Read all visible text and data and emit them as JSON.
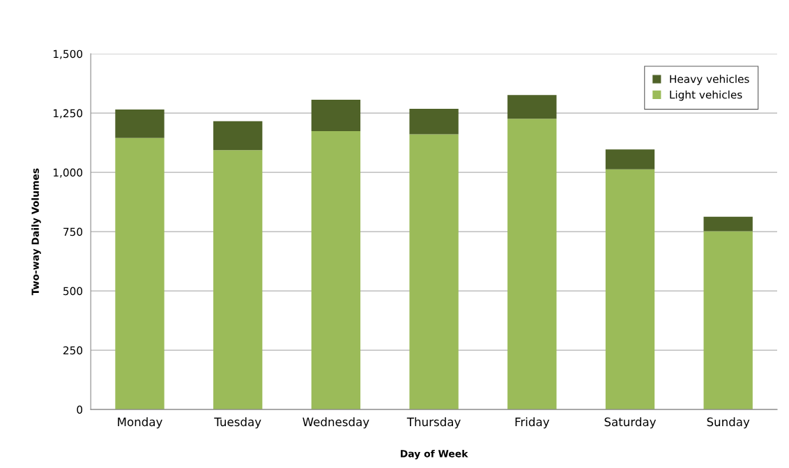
{
  "chart_data": {
    "type": "bar",
    "stacked": true,
    "xlabel": "Day of Week",
    "ylabel": "Two-way Daily Volumes",
    "categories": [
      "Monday",
      "Tuesday",
      "Wednesday",
      "Thursday",
      "Friday",
      "Saturday",
      "Sunday"
    ],
    "series": [
      {
        "name": "Light vehicles",
        "color": "#9bbb59",
        "values": [
          1145,
          1094,
          1174,
          1161,
          1226,
          1013,
          752
        ]
      },
      {
        "name": "Heavy vehicles",
        "color": "#4f6228",
        "values": [
          120,
          122,
          132,
          107,
          100,
          84,
          61
        ]
      }
    ],
    "ylim": [
      0,
      1500
    ],
    "yticks": [
      {
        "value": 0,
        "label": "0"
      },
      {
        "value": 250,
        "label": "250"
      },
      {
        "value": 500,
        "label": "500"
      },
      {
        "value": 750,
        "label": "750"
      },
      {
        "value": 1000,
        "label": "1,000"
      },
      {
        "value": 1250,
        "label": "1,250"
      },
      {
        "value": 1500,
        "label": "1,500"
      }
    ],
    "grid": "y",
    "legend": "top right"
  }
}
